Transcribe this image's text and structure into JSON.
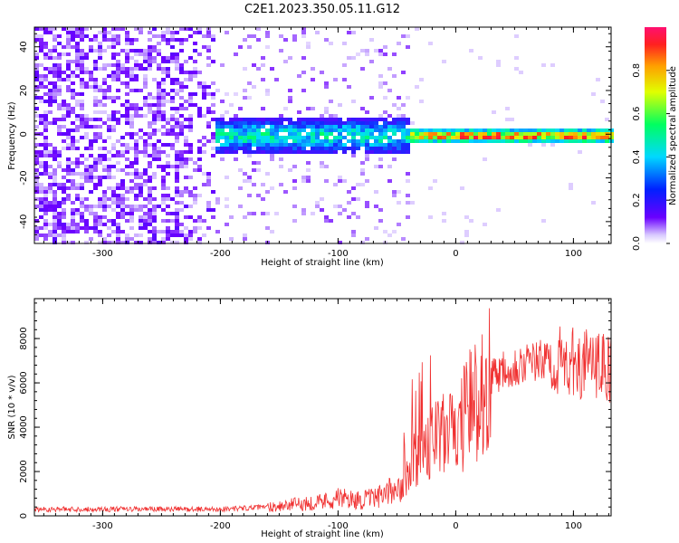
{
  "title": "C2E1.2023.350.05.11.G12",
  "chart_data": [
    {
      "type": "heatmap",
      "xlabel": "Height of straight line (km)",
      "ylabel": "Frequency (Hz)",
      "xlim": [
        -358,
        132
      ],
      "ylim": [
        -50,
        49
      ],
      "x_ticks": [
        -300,
        -200,
        -100,
        0,
        100
      ],
      "y_ticks": [
        -40,
        -20,
        0,
        20,
        40
      ],
      "colorbar": {
        "label": "Normalized spectral amplitude",
        "range": [
          0.0,
          1.0
        ],
        "ticks": [
          0.0,
          0.2,
          0.4,
          0.6,
          0.8
        ]
      },
      "grid": false
    },
    {
      "type": "line",
      "xlabel": "Height of straight line (km)",
      "ylabel": "SNR (10 * v/v)",
      "xlim": [
        -358,
        132
      ],
      "ylim": [
        0,
        9800
      ],
      "x_ticks": [
        -300,
        -200,
        -100,
        0,
        100
      ],
      "y_ticks": [
        0,
        2000,
        4000,
        6000,
        8000
      ],
      "series_color": "#f03030",
      "grid": false,
      "trend": {
        "x": [
          -358,
          -300,
          -200,
          -160,
          -120,
          -100,
          -80,
          -60,
          -45,
          -35,
          -28,
          -20,
          -10,
          0,
          10,
          20,
          30,
          40,
          60,
          80,
          100,
          115,
          132
        ],
        "y": [
          300,
          300,
          300,
          400,
          600,
          800,
          700,
          900,
          1600,
          2500,
          3200,
          3400,
          3600,
          3800,
          4700,
          5600,
          6300,
          6700,
          6900,
          7000,
          6900,
          6800,
          6600
        ]
      }
    }
  ]
}
